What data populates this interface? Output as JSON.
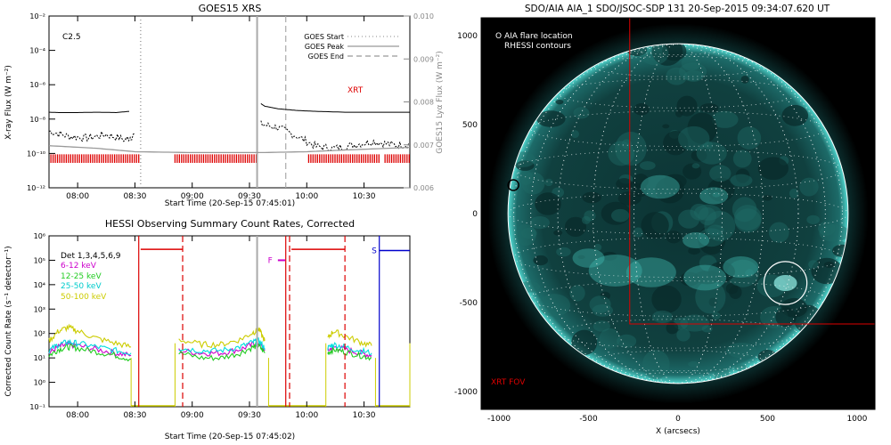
{
  "panels": {
    "goes": {
      "title": "GOES15 XRS",
      "xlabel": "Start Time (20-Sep-15 07:45:01)",
      "ylabel": "X-ray Flux (W m⁻²)",
      "y2label": "GOES15 Lyα Flux (W m⁻²)",
      "class_label": "C2.5",
      "xrt_label": "XRT",
      "legend": [
        "GOES Start",
        "GOES Peak",
        "GOES End"
      ]
    },
    "hessi": {
      "title": "HESSI Observing Summary Count Rates, Corrected",
      "xlabel": "Start Time (20-Sep-15 07:45:02)",
      "ylabel": "Corrected Count Rate (s⁻¹ detector⁻¹)",
      "flag_f": "F",
      "flag_s": "S",
      "legend": [
        "Det 1,3,4,5,6,9",
        "6-12 keV",
        "12-25 keV",
        "25-50 keV",
        "50-100 keV"
      ]
    },
    "aia": {
      "title": "SDO/AIA AIA_1 SDO/JSOC-SDP 131 20-Sep-2015 09:34:07.620 UT",
      "xlabel": "X (arcsecs)",
      "legend": [
        "O AIA flare location",
        "RHESSI contours"
      ],
      "fov_label": "XRT FOV"
    }
  },
  "chart_data": [
    {
      "type": "line",
      "title": "GOES15 XRS",
      "xlabel": "Start Time (20-Sep-15 07:45:01)",
      "ylabel": "X-ray Flux (W m⁻²)",
      "y2label": "GOES15 Lyα Flux (W m⁻²)",
      "x_ticks": [
        "08:00",
        "08:30",
        "09:00",
        "09:30",
        "10:00",
        "10:30"
      ],
      "x_tick_minutes": [
        480,
        510,
        540,
        570,
        600,
        630
      ],
      "xlim_minutes": [
        465,
        654
      ],
      "y_ticks": [
        "10⁻¹²",
        "10⁻¹⁰",
        "10⁻⁸",
        "10⁻⁶",
        "10⁻⁴",
        "10⁻²"
      ],
      "y_tick_exponents": [
        -12,
        -10,
        -8,
        -6,
        -4,
        -2
      ],
      "ylim_log10": [
        -12,
        -2
      ],
      "y2_ticks": [
        "0.006",
        "0.007",
        "0.008",
        "0.009",
        "0.010"
      ],
      "y2lim": [
        0.006,
        0.01
      ],
      "series": [
        {
          "name": "",
          "color": "#000000",
          "segments": [
            {
              "x": [
                465,
                470,
                480,
                490,
                500,
                507
              ],
              "log10": [
                -7.6,
                -7.62,
                -7.62,
                -7.6,
                -7.62,
                -7.55
              ]
            },
            {
              "x": [
                576,
                578,
                585,
                595,
                605,
                620,
                640,
                654
              ],
              "log10": [
                -7.1,
                -7.25,
                -7.4,
                -7.5,
                -7.55,
                -7.6,
                -7.6,
                -7.6
              ]
            }
          ]
        },
        {
          "name": "",
          "color": "#000000",
          "style": "noisy",
          "segments": [
            {
              "x": [
                465,
                475,
                485,
                495,
                505,
                510
              ],
              "log10": [
                -8.7,
                -9.0,
                -9.1,
                -8.9,
                -9.2,
                -8.9
              ]
            },
            {
              "x": [
                576,
                585,
                595,
                605,
                615,
                625,
                635,
                645,
                654
              ],
              "log10": [
                -8.3,
                -8.5,
                -9.0,
                -9.6,
                -9.7,
                -9.5,
                -9.3,
                -9.5,
                -9.5
              ]
            }
          ]
        },
        {
          "name": "",
          "color": "#999999",
          "segments": [
            {
              "x": [
                465,
                490,
                510,
                540,
                576,
                600,
                620,
                654
              ],
              "log10": [
                -9.55,
                -9.7,
                -9.9,
                -9.95,
                -9.95,
                -9.9,
                -9.8,
                -9.65
              ]
            }
          ]
        }
      ],
      "vlines": [
        {
          "name": "GOES Start",
          "x": 513,
          "style": "dotted",
          "color": "#888888"
        },
        {
          "name": "GOES Peak",
          "x": 574,
          "style": "solid",
          "color": "#aaaaaa"
        },
        {
          "name": "GOES End",
          "x": 589,
          "style": "dashed",
          "color": "#aaaaaa"
        }
      ],
      "red_bars": [
        [
          466,
          512
        ],
        [
          531,
          574
        ],
        [
          601,
          638
        ],
        [
          641,
          654
        ]
      ]
    },
    {
      "type": "line",
      "title": "HESSI Observing Summary Count Rates, Corrected",
      "xlabel": "Start Time (20-Sep-15 07:45:02)",
      "ylabel": "Corrected Count Rate (s⁻¹ detector⁻¹)",
      "x_ticks": [
        "08:00",
        "08:30",
        "09:00",
        "09:30",
        "10:00",
        "10:30"
      ],
      "x_tick_minutes": [
        480,
        510,
        540,
        570,
        600,
        630
      ],
      "xlim_minutes": [
        465,
        654
      ],
      "y_ticks": [
        "10⁻¹",
        "10⁰",
        "10¹",
        "10²",
        "10³",
        "10⁴",
        "10⁵",
        "10⁶"
      ],
      "y_tick_exponents": [
        -1,
        0,
        1,
        2,
        3,
        4,
        5,
        6
      ],
      "ylim_log10": [
        -1,
        6
      ],
      "series": [
        {
          "name": "6-12 keV",
          "color": "#cc00cc",
          "segments": [
            {
              "x": [
                465,
                470,
                475,
                480,
                490,
                500,
                508
              ],
              "log10": [
                1.2,
                1.45,
                1.55,
                1.5,
                1.35,
                1.2,
                1.1
              ]
            },
            {
              "x": [
                533,
                545,
                555,
                565,
                572,
                575,
                578
              ],
              "log10": [
                1.3,
                1.2,
                1.2,
                1.35,
                1.55,
                1.6,
                1.3
              ]
            },
            {
              "x": [
                611,
                614,
                620,
                628,
                634
              ],
              "log10": [
                1.3,
                1.45,
                1.35,
                1.2,
                1.1
              ]
            }
          ]
        },
        {
          "name": "12-25 keV",
          "color": "#22cc22",
          "segments": [
            {
              "x": [
                465,
                470,
                475,
                480,
                490,
                500,
                508
              ],
              "log10": [
                1.1,
                1.35,
                1.45,
                1.4,
                1.25,
                1.1,
                0.95
              ]
            },
            {
              "x": [
                533,
                545,
                555,
                565,
                572,
                575,
                578
              ],
              "log10": [
                1.2,
                1.0,
                1.0,
                1.2,
                1.45,
                1.5,
                1.2
              ]
            },
            {
              "x": [
                611,
                614,
                620,
                628,
                634
              ],
              "log10": [
                1.2,
                1.35,
                1.25,
                1.1,
                1.0
              ]
            }
          ]
        },
        {
          "name": "25-50 keV",
          "color": "#00dddd",
          "segments": [
            {
              "x": [
                465,
                470,
                475,
                480,
                490,
                500,
                508
              ],
              "log10": [
                1.3,
                1.55,
                1.65,
                1.6,
                1.45,
                1.3,
                1.2
              ]
            },
            {
              "x": [
                533,
                545,
                555,
                565,
                572,
                575,
                578
              ],
              "log10": [
                1.4,
                1.3,
                1.3,
                1.45,
                1.65,
                1.7,
                1.4
              ]
            },
            {
              "x": [
                611,
                614,
                620,
                628,
                634
              ],
              "log10": [
                1.4,
                1.55,
                1.45,
                1.3,
                1.2
              ]
            }
          ]
        },
        {
          "name": "50-100 keV",
          "color": "#cccc00",
          "segments": [
            {
              "x": [
                465,
                470,
                475,
                480,
                490,
                500,
                508
              ],
              "log10": [
                1.7,
                2.1,
                2.25,
                2.1,
                1.8,
                1.6,
                1.45
              ]
            },
            {
              "x": [
                533,
                545,
                555,
                565,
                572,
                575,
                578
              ],
              "log10": [
                1.75,
                1.55,
                1.55,
                1.75,
                2.05,
                2.15,
                1.7
              ]
            },
            {
              "x": [
                611,
                614,
                620,
                628,
                634
              ],
              "log10": [
                1.8,
                2.1,
                1.9,
                1.65,
                1.5
              ]
            }
          ]
        }
      ],
      "attenuator_segments": [
        [
          508,
          531
        ],
        [
          580,
          610
        ],
        [
          636,
          654
        ]
      ],
      "red_top_segments": [
        [
          513,
          535
        ],
        [
          592,
          620
        ]
      ],
      "vlines": [
        {
          "x": 512,
          "style": "solid",
          "color": "#dd0000"
        },
        {
          "x": 535,
          "style": "dashed",
          "color": "#dd0000"
        },
        {
          "x": 574,
          "style": "solid",
          "color": "#aaaaaa"
        },
        {
          "x": 589,
          "style": "solid",
          "color": "#dd0000"
        },
        {
          "x": 591,
          "style": "dashed",
          "color": "#dd0000"
        },
        {
          "x": 620,
          "style": "dashed",
          "color": "#dd0000"
        },
        {
          "x": 638,
          "style": "solid",
          "color": "#0000cc"
        }
      ],
      "flags": [
        {
          "label": "F",
          "x_range": [
            583,
            585
          ],
          "log10": 5.0,
          "color": "#cc00cc"
        },
        {
          "label": "S",
          "x_range": [
            639,
            654
          ],
          "log10": 5.4,
          "color": "#0000cc"
        }
      ]
    },
    {
      "type": "image",
      "title": "SDO/AIA AIA_1 SDO/JSOC-SDP 131 20-Sep-2015 09:34:07.620 UT",
      "xlabel": "X (arcsecs)",
      "x_ticks": [
        -1000,
        -500,
        0,
        500,
        1000
      ],
      "y_ticks": [
        -1000,
        -500,
        0,
        500,
        1000
      ],
      "xlim": [
        -1100,
        1100
      ],
      "ylim": [
        -1100,
        1100
      ],
      "solar_radius": 950,
      "aia_flare_location": {
        "x": -920,
        "y": 160
      },
      "rhessi_contour": {
        "x": 600,
        "y": -390,
        "r": 120
      },
      "xrt_fov": {
        "x": [
          -270,
          1100
        ],
        "y": [
          -620,
          1100
        ]
      }
    }
  ],
  "colors": {
    "disk": "#0d3b3b",
    "background": "#000000",
    "accent_red": "#dd0000",
    "flux_gray": "#999999",
    "teal": "#1aa3a3"
  }
}
